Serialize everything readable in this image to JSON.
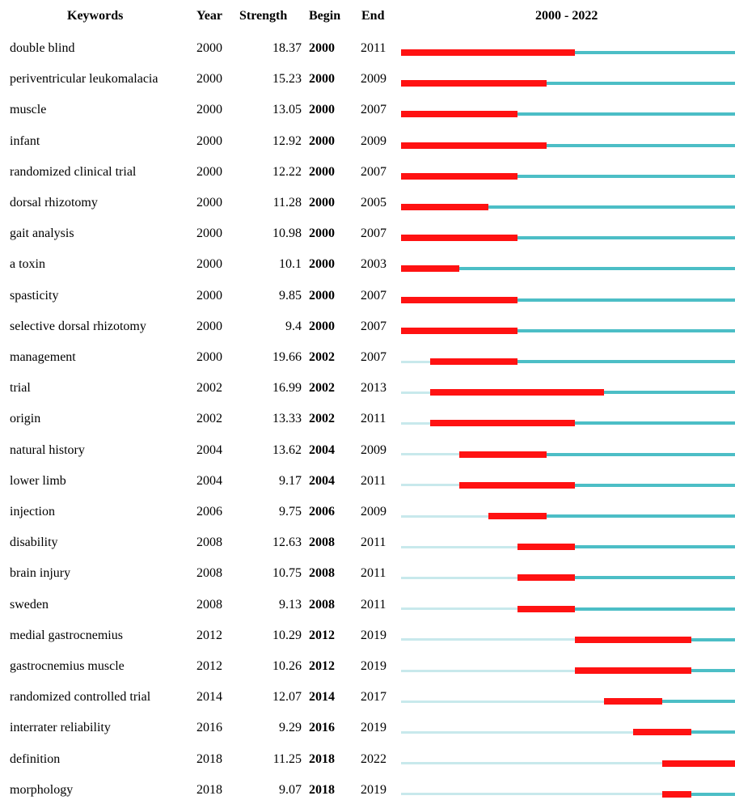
{
  "chart_data": {
    "type": "table",
    "headers": {
      "keywords": "Keywords",
      "year": "Year",
      "strength": "Strength",
      "begin": "Begin",
      "end": "End",
      "range": "2000 - 2022"
    },
    "timeline": {
      "start": 2000,
      "end": 2022
    },
    "rows": [
      {
        "keyword": "double blind",
        "year": 2000,
        "strength": "18.37",
        "begin": 2000,
        "end": 2011
      },
      {
        "keyword": "periventricular leukomalacia",
        "year": 2000,
        "strength": "15.23",
        "begin": 2000,
        "end": 2009
      },
      {
        "keyword": "muscle",
        "year": 2000,
        "strength": "13.05",
        "begin": 2000,
        "end": 2007
      },
      {
        "keyword": "infant",
        "year": 2000,
        "strength": "12.92",
        "begin": 2000,
        "end": 2009
      },
      {
        "keyword": "randomized clinical trial",
        "year": 2000,
        "strength": "12.22",
        "begin": 2000,
        "end": 2007
      },
      {
        "keyword": "dorsal rhizotomy",
        "year": 2000,
        "strength": "11.28",
        "begin": 2000,
        "end": 2005
      },
      {
        "keyword": "gait analysis",
        "year": 2000,
        "strength": "10.98",
        "begin": 2000,
        "end": 2007
      },
      {
        "keyword": "a toxin",
        "year": 2000,
        "strength": "10.1",
        "begin": 2000,
        "end": 2003
      },
      {
        "keyword": "spasticity",
        "year": 2000,
        "strength": "9.85",
        "begin": 2000,
        "end": 2007
      },
      {
        "keyword": "selective dorsal rhizotomy",
        "year": 2000,
        "strength": "9.4",
        "begin": 2000,
        "end": 2007
      },
      {
        "keyword": "management",
        "year": 2000,
        "strength": "19.66",
        "begin": 2002,
        "end": 2007
      },
      {
        "keyword": "trial",
        "year": 2002,
        "strength": "16.99",
        "begin": 2002,
        "end": 2013
      },
      {
        "keyword": "origin",
        "year": 2002,
        "strength": "13.33",
        "begin": 2002,
        "end": 2011
      },
      {
        "keyword": "natural history",
        "year": 2004,
        "strength": "13.62",
        "begin": 2004,
        "end": 2009
      },
      {
        "keyword": "lower limb",
        "year": 2004,
        "strength": "9.17",
        "begin": 2004,
        "end": 2011
      },
      {
        "keyword": "injection",
        "year": 2006,
        "strength": "9.75",
        "begin": 2006,
        "end": 2009
      },
      {
        "keyword": "disability",
        "year": 2008,
        "strength": "12.63",
        "begin": 2008,
        "end": 2011
      },
      {
        "keyword": "brain injury",
        "year": 2008,
        "strength": "10.75",
        "begin": 2008,
        "end": 2011
      },
      {
        "keyword": "sweden",
        "year": 2008,
        "strength": "9.13",
        "begin": 2008,
        "end": 2011
      },
      {
        "keyword": "medial gastrocnemius",
        "year": 2012,
        "strength": "10.29",
        "begin": 2012,
        "end": 2019
      },
      {
        "keyword": "gastrocnemius muscle",
        "year": 2012,
        "strength": "10.26",
        "begin": 2012,
        "end": 2019
      },
      {
        "keyword": "randomized controlled trial",
        "year": 2014,
        "strength": "12.07",
        "begin": 2014,
        "end": 2017
      },
      {
        "keyword": "interrater reliability",
        "year": 2016,
        "strength": "9.29",
        "begin": 2016,
        "end": 2019
      },
      {
        "keyword": "definition",
        "year": 2018,
        "strength": "11.25",
        "begin": 2018,
        "end": 2022
      },
      {
        "keyword": "morphology",
        "year": 2018,
        "strength": "9.07",
        "begin": 2018,
        "end": 2019
      }
    ],
    "colors": {
      "burst": "#ff1212",
      "active": "#4cbec6",
      "before": "#c8e9ec"
    }
  }
}
